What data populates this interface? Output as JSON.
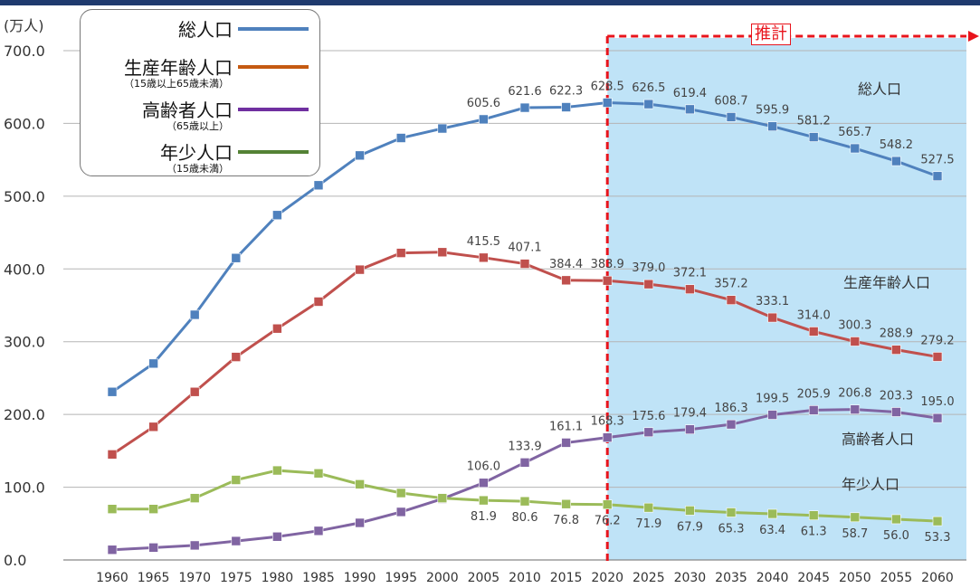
{
  "chart_data": {
    "type": "line",
    "ylabel": "(万人)",
    "ylim": [
      0,
      700
    ],
    "yticks": [
      "0.0",
      "100.0",
      "200.0",
      "300.0",
      "400.0",
      "500.0",
      "600.0",
      "700.0"
    ],
    "x": [
      "1960",
      "1965",
      "1970",
      "1975",
      "1980",
      "1985",
      "1990",
      "1995",
      "2000",
      "2005",
      "2010",
      "2015",
      "2020",
      "2025",
      "2030",
      "2035",
      "2040",
      "2045",
      "2050",
      "2055",
      "2060"
    ],
    "projection": {
      "label": "推計",
      "from": "2020",
      "to": "2060"
    },
    "series": [
      {
        "name": "総人口",
        "color": "#4f81bd",
        "values": [
          231,
          270,
          337,
          415,
          474,
          515,
          556,
          580,
          593,
          605.6,
          621.6,
          622.3,
          628.5,
          626.5,
          619.4,
          608.7,
          595.9,
          581.2,
          565.7,
          548.2,
          527.5
        ],
        "labels": [
          null,
          null,
          null,
          null,
          null,
          null,
          null,
          null,
          null,
          "605.6",
          "621.6",
          "622.3",
          "628.5",
          "626.5",
          "619.4",
          "608.7",
          "595.9",
          "581.2",
          "565.7",
          "548.2",
          "527.5"
        ]
      },
      {
        "name": "生産年齢人口",
        "color": "#c0504d",
        "values": [
          145,
          183,
          231,
          279,
          318,
          355,
          399,
          422,
          423,
          415.5,
          407.1,
          384.4,
          383.9,
          379.0,
          372.1,
          357.2,
          333.1,
          314.0,
          300.3,
          288.9,
          279.2
        ],
        "labels": [
          null,
          null,
          null,
          null,
          null,
          null,
          null,
          null,
          null,
          "415.5",
          "407.1",
          "384.4",
          "383.9",
          "379.0",
          "372.1",
          "357.2",
          "333.1",
          "314.0",
          "300.3",
          "288.9",
          "279.2"
        ]
      },
      {
        "name": "高齢者人口",
        "color": "#8064a2",
        "values": [
          14,
          17,
          20,
          26,
          32,
          40,
          51,
          66,
          84,
          106.0,
          133.9,
          161.1,
          168.3,
          175.6,
          179.4,
          186.3,
          199.5,
          205.9,
          206.8,
          203.3,
          195.0
        ],
        "labels": [
          null,
          null,
          null,
          null,
          null,
          null,
          null,
          null,
          null,
          "106.0",
          "133.9",
          "161.1",
          "168.3",
          "175.6",
          "179.4",
          "186.3",
          "199.5",
          "205.9",
          "206.8",
          "203.3",
          "195.0"
        ]
      },
      {
        "name": "年少人口",
        "color": "#9bbb59",
        "values": [
          70,
          70,
          85,
          110,
          123,
          119,
          104,
          92,
          85,
          81.9,
          80.6,
          76.8,
          76.2,
          71.9,
          67.9,
          65.3,
          63.4,
          61.3,
          58.7,
          56.0,
          53.3
        ],
        "labels": [
          null,
          null,
          null,
          null,
          null,
          null,
          null,
          null,
          null,
          "81.9",
          "80.6",
          "76.8",
          "76.2",
          "71.9",
          "67.9",
          "65.3",
          "63.4",
          "61.3",
          "58.7",
          "56.0",
          "53.3"
        ]
      }
    ],
    "legend": [
      {
        "name": "総人口",
        "sub": "",
        "color": "#4f81bd"
      },
      {
        "name": "生産年齢人口",
        "sub": "（15歳以上65歳未満）",
        "color": "#c55a11"
      },
      {
        "name": "高齢者人口",
        "sub": "（65歳以上）",
        "color": "#7030a0"
      },
      {
        "name": "年少人口",
        "sub": "（15歳未満）",
        "color": "#548235"
      }
    ]
  }
}
